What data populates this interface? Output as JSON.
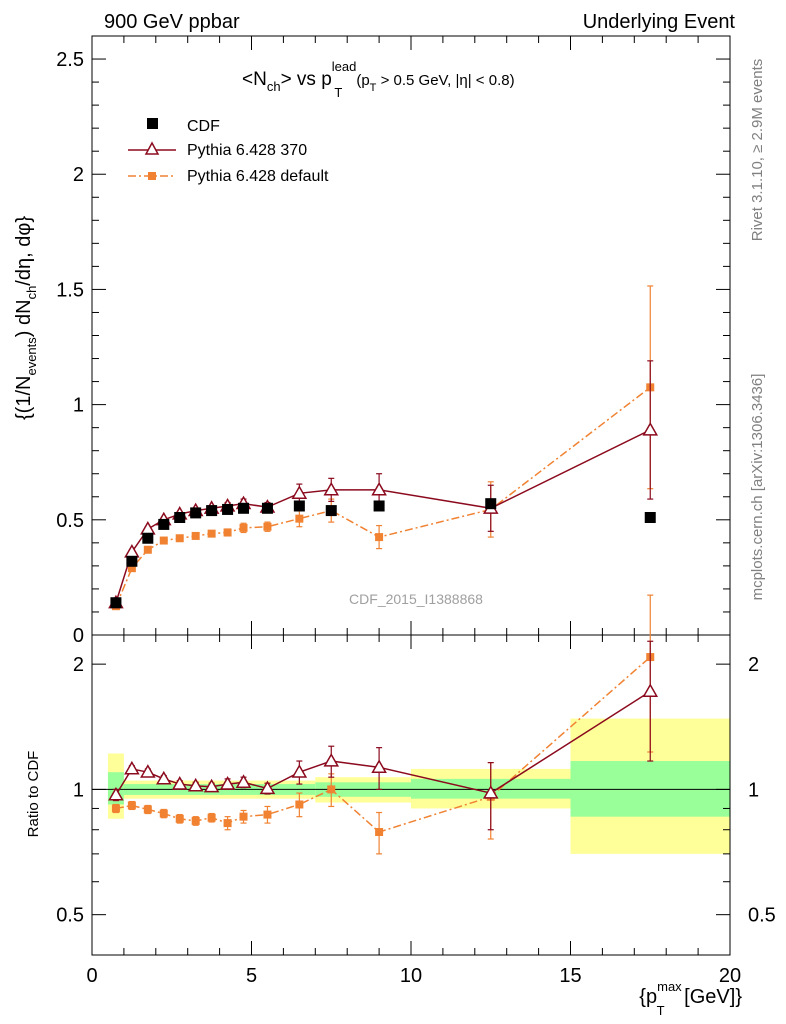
{
  "header": {
    "left": "900 GeV ppbar",
    "right": "Underlying Event"
  },
  "side_labels": {
    "upper": "Rivet 3.1.10, ≥ 2.9M events",
    "lower": "mcplots.cern.ch [arXiv:1306.3436]"
  },
  "chart_data": [
    {
      "type": "scatter",
      "title_parts": {
        "a": "<N",
        "a_sub": "ch",
        "b": "> vs p",
        "b_sup": "lead",
        "b_sub": "T",
        "c": "(p",
        "c_sub": "T",
        "d": " > 0.5 GeV, |η| < 0.8)"
      },
      "ylabel_parts": {
        "a": "{(1/N",
        "a_sub": "events",
        "b": ") dN",
        "b_sub": "ch",
        "c": "/dη, dφ}"
      },
      "watermark": "CDF_2015_I1388868",
      "ylim": [
        0,
        2.6
      ],
      "xlim": [
        0,
        20
      ],
      "yticks": [
        "0",
        "0.5",
        "1",
        "1.5",
        "2",
        "2.5"
      ],
      "legend_position": "top-left",
      "series": [
        {
          "name": "CDF",
          "color": "#000000",
          "marker": "square",
          "x": [
            0.75,
            1.25,
            1.75,
            2.25,
            2.75,
            3.25,
            3.75,
            4.25,
            4.75,
            5.5,
            6.5,
            7.5,
            9.0,
            12.5,
            17.5
          ],
          "y": [
            0.14,
            0.32,
            0.42,
            0.48,
            0.51,
            0.53,
            0.54,
            0.545,
            0.55,
            0.55,
            0.56,
            0.54,
            0.56,
            0.57,
            0.51
          ]
        },
        {
          "name": "Pythia 6.428 370",
          "color": "#8b0a1e",
          "marker": "triangle-open",
          "x": [
            0.75,
            1.25,
            1.75,
            2.25,
            2.75,
            3.25,
            3.75,
            4.25,
            4.75,
            5.5,
            6.5,
            7.5,
            9.0,
            12.5,
            17.5
          ],
          "y": [
            0.14,
            0.36,
            0.46,
            0.5,
            0.525,
            0.54,
            0.55,
            0.56,
            0.57,
            0.555,
            0.615,
            0.63,
            0.63,
            0.55,
            0.89
          ],
          "err": [
            0.01,
            0.01,
            0.01,
            0.01,
            0.01,
            0.01,
            0.01,
            0.015,
            0.02,
            0.02,
            0.04,
            0.05,
            0.07,
            0.1,
            0.3
          ]
        },
        {
          "name": "Pythia 6.428 default",
          "color": "#f08232",
          "marker": "square-small",
          "x": [
            0.75,
            1.25,
            1.75,
            2.25,
            2.75,
            3.25,
            3.75,
            4.25,
            4.75,
            5.5,
            6.5,
            7.5,
            9.0,
            12.5,
            17.5
          ],
          "y": [
            0.125,
            0.29,
            0.37,
            0.41,
            0.42,
            0.43,
            0.44,
            0.445,
            0.465,
            0.47,
            0.505,
            0.54,
            0.425,
            0.545,
            1.075
          ],
          "err": [
            0.01,
            0.01,
            0.01,
            0.01,
            0.01,
            0.01,
            0.01,
            0.015,
            0.02,
            0.02,
            0.035,
            0.05,
            0.05,
            0.12,
            0.44
          ]
        }
      ]
    },
    {
      "type": "scatter",
      "ylabel": "Ratio to CDF",
      "xlabel_parts": {
        "a": "{p",
        "a_sup": "max",
        "a_sub": "T",
        "b": " [GeV]}"
      },
      "ylim": [
        0.4,
        2.35
      ],
      "xlim": [
        0,
        20
      ],
      "xticks": [
        "0",
        "5",
        "10",
        "15",
        "20"
      ],
      "yticks": [
        "0.5",
        "1",
        "2"
      ],
      "reference_line": 1.0,
      "bands": {
        "inner_color": "#99ff99",
        "outer_color": "#ffff99",
        "bins": [
          {
            "x0": 0.5,
            "x1": 1.0,
            "inner": [
              0.92,
              1.1
            ],
            "outer": [
              0.85,
              1.22
            ]
          },
          {
            "x0": 1.0,
            "x1": 5.0,
            "inner": [
              0.97,
              1.03
            ],
            "outer": [
              0.95,
              1.05
            ]
          },
          {
            "x0": 5.0,
            "x1": 7.0,
            "inner": [
              0.97,
              1.03
            ],
            "outer": [
              0.95,
              1.05
            ]
          },
          {
            "x0": 7.0,
            "x1": 10.0,
            "inner": [
              0.96,
              1.04
            ],
            "outer": [
              0.93,
              1.07
            ]
          },
          {
            "x0": 10.0,
            "x1": 15.0,
            "inner": [
              0.95,
              1.06
            ],
            "outer": [
              0.9,
              1.12
            ]
          },
          {
            "x0": 15.0,
            "x1": 20.0,
            "inner": [
              0.86,
              1.17
            ],
            "outer": [
              0.7,
              1.48
            ]
          }
        ]
      },
      "series": [
        {
          "name": "Pythia 6.428 370",
          "color": "#8b0a1e",
          "marker": "triangle-open",
          "x": [
            0.75,
            1.25,
            1.75,
            2.25,
            2.75,
            3.25,
            3.75,
            4.25,
            4.75,
            5.5,
            6.5,
            7.5,
            9.0,
            12.5,
            17.5
          ],
          "y": [
            0.97,
            1.12,
            1.1,
            1.06,
            1.03,
            1.02,
            1.015,
            1.03,
            1.04,
            1.005,
            1.1,
            1.17,
            1.13,
            0.98,
            1.72
          ],
          "err": [
            0.03,
            0.02,
            0.02,
            0.02,
            0.02,
            0.02,
            0.02,
            0.03,
            0.03,
            0.03,
            0.07,
            0.1,
            0.13,
            0.18,
            0.55
          ]
        },
        {
          "name": "Pythia 6.428 default",
          "color": "#f08232",
          "marker": "square-small",
          "x": [
            0.75,
            1.25,
            1.75,
            2.25,
            2.75,
            3.25,
            3.75,
            4.25,
            4.75,
            5.5,
            6.5,
            7.5,
            9.0,
            12.5,
            17.5
          ],
          "y": [
            0.9,
            0.915,
            0.895,
            0.875,
            0.85,
            0.84,
            0.855,
            0.83,
            0.86,
            0.87,
            0.92,
            1.0,
            0.79,
            0.96,
            2.08
          ],
          "err": [
            0.02,
            0.02,
            0.02,
            0.02,
            0.02,
            0.02,
            0.02,
            0.03,
            0.03,
            0.04,
            0.06,
            0.09,
            0.09,
            0.2,
            0.85
          ]
        }
      ]
    }
  ]
}
